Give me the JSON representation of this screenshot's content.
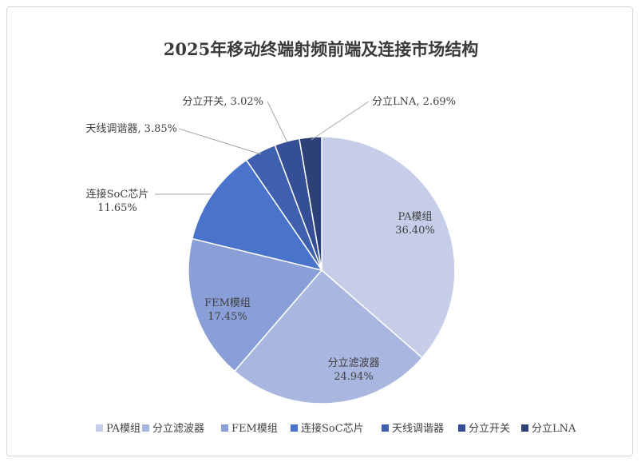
{
  "chart_data": {
    "type": "pie",
    "title": "2025年移动终端射频前端及连接市场结构",
    "categories": [
      "PA模组",
      "分立滤波器",
      "FEM模组",
      "连接SoC芯片",
      "天线调谐器",
      "分立开关",
      "分立LNA"
    ],
    "values": [
      36.4,
      24.94,
      17.45,
      11.65,
      3.85,
      3.02,
      2.69
    ],
    "data_labels": [
      [
        "PA模组",
        "36.40%"
      ],
      [
        "分立滤波器",
        "24.94%"
      ],
      [
        "FEM模组",
        "17.45%"
      ],
      [
        "连接SoC芯片",
        "11.65%"
      ],
      [
        "天线调谐器, 3.85%"
      ],
      [
        "分立开关, 3.02%"
      ],
      [
        "分立LNA, 2.69%"
      ]
    ],
    "colors": [
      "#c5cde8",
      "#a9b6e0",
      "#8a9fd8",
      "#4a74cc",
      "#3f5faf",
      "#354f96",
      "#2b4177"
    ],
    "legend_position": "bottom",
    "units": "%"
  }
}
